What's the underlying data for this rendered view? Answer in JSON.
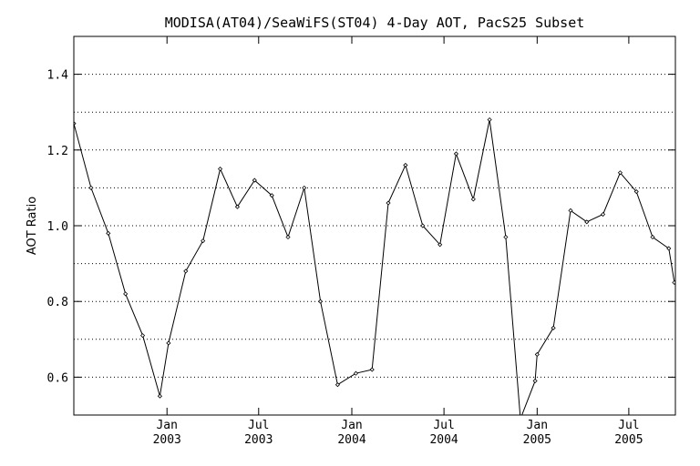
{
  "chart_data": {
    "type": "line",
    "title": "MODISA(AT04)/SeaWiFS(ST04) 4-Day AOT, PacS25 Subset",
    "xlabel": "",
    "ylabel": "AOT Ratio",
    "ylim": [
      0.5,
      1.5
    ],
    "yticks": [
      0.6,
      0.8,
      1.0,
      1.2,
      1.4
    ],
    "ytick_labels": [
      "0.6",
      "0.8",
      "1.0",
      "1.2",
      "1.4"
    ],
    "xlim": [
      "2002-07-01",
      "2005-10-01"
    ],
    "xticks": [
      {
        "date": "2003-01-01",
        "line1": "Jan",
        "line2": "2003"
      },
      {
        "date": "2003-07-01",
        "line1": "Jul",
        "line2": "2003"
      },
      {
        "date": "2004-01-01",
        "line1": "Jan",
        "line2": "2004"
      },
      {
        "date": "2004-07-01",
        "line1": "Jul",
        "line2": "2004"
      },
      {
        "date": "2005-01-01",
        "line1": "Jan",
        "line2": "2005"
      },
      {
        "date": "2005-07-01",
        "line1": "Jul",
        "line2": "2005"
      }
    ],
    "grid": "horizontal dotted",
    "line_color": "#000000",
    "series": [
      {
        "x": [
          "2002-07-01",
          "2002-08-04",
          "2002-09-07",
          "2002-10-11",
          "2002-11-14",
          "2002-12-18",
          "2003-01-04",
          "2003-02-07",
          "2003-03-13",
          "2003-04-16",
          "2003-05-20",
          "2003-06-23",
          "2003-07-27",
          "2003-08-28",
          "2003-09-29",
          "2003-10-31",
          "2003-12-04",
          "2004-01-09",
          "2004-02-10",
          "2004-03-13",
          "2004-04-16",
          "2004-05-20",
          "2004-06-23",
          "2004-07-25",
          "2004-08-28",
          "2004-09-29",
          "2004-10-31",
          "2004-11-29",
          "2004-12-28",
          "2005-01-01",
          "2005-02-02",
          "2005-03-08",
          "2005-04-09",
          "2005-05-11",
          "2005-06-14",
          "2005-07-16",
          "2005-08-17",
          "2005-09-18",
          "2005-09-29"
        ],
        "y": [
          1.27,
          1.1,
          0.98,
          0.82,
          0.71,
          0.55,
          0.69,
          0.88,
          0.96,
          1.15,
          1.05,
          1.12,
          1.08,
          0.97,
          1.1,
          0.8,
          0.58,
          0.61,
          0.62,
          1.06,
          1.16,
          1.0,
          0.95,
          1.19,
          1.07,
          1.28,
          0.97,
          0.49,
          0.59,
          0.66,
          0.73,
          1.04,
          1.01,
          1.03,
          1.14,
          1.09,
          0.97,
          0.94,
          0.85
        ]
      }
    ]
  }
}
